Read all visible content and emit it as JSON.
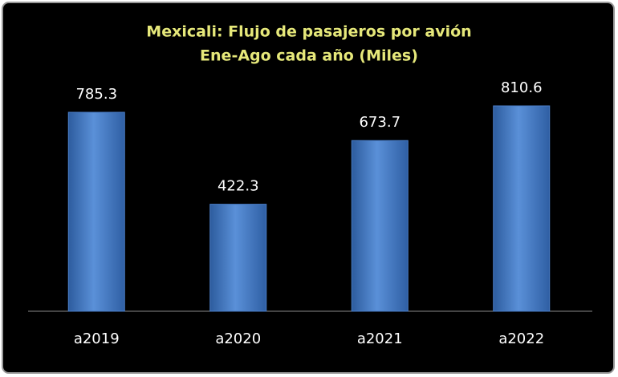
{
  "chart_data": {
    "type": "bar",
    "title": "Mexicali: Flujo de pasajeros por avión",
    "subtitle": "Ene-Ago cada año (Miles)",
    "categories": [
      "a2019",
      "a2020",
      "a2021",
      "a2022"
    ],
    "values": [
      785.3,
      422.3,
      673.7,
      810.6
    ],
    "color": "#4a7ec8"
  }
}
